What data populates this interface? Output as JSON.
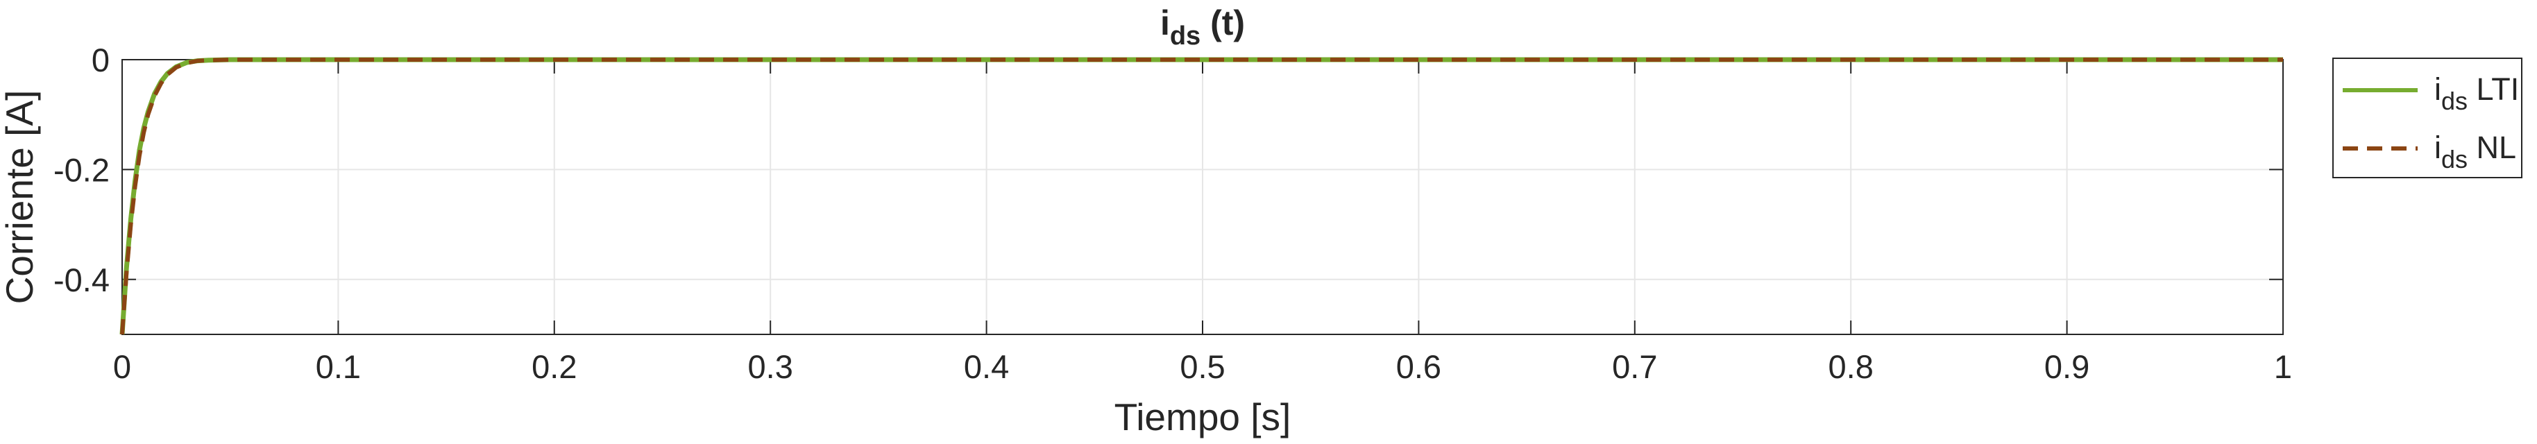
{
  "chart_data": {
    "type": "line",
    "title": "i",
    "title_sub": "ds",
    "title_suffix": " (t)",
    "xlabel": "Tiempo [s]",
    "ylabel": "Corriente [A]",
    "xlim": [
      0,
      1
    ],
    "ylim": [
      -0.5,
      0
    ],
    "xticks": [
      0,
      0.1,
      0.2,
      0.3,
      0.4,
      0.5,
      0.6,
      0.7,
      0.8,
      0.9,
      1
    ],
    "xtick_labels": [
      "0",
      "0.1",
      "0.2",
      "0.3",
      "0.4",
      "0.5",
      "0.6",
      "0.7",
      "0.8",
      "0.9",
      "1"
    ],
    "yticks": [
      0,
      -0.2,
      -0.4
    ],
    "ytick_labels": [
      "0",
      "-0.2",
      "-0.4"
    ],
    "grid": true,
    "legend_position": "outside-right",
    "series": [
      {
        "name": "i",
        "name_sub": "ds",
        "name_suffix": " LTI",
        "color": "#77ac30",
        "style": "solid",
        "x": [
          0,
          0.002,
          0.004,
          0.006,
          0.008,
          0.01,
          0.012,
          0.015,
          0.018,
          0.021,
          0.025,
          0.03,
          0.035,
          0.04,
          0.05,
          0.1,
          0.2,
          0.3,
          0.4,
          0.5,
          0.6,
          0.7,
          0.8,
          0.9,
          1
        ],
        "y": [
          -0.5,
          -0.38,
          -0.29,
          -0.22,
          -0.165,
          -0.125,
          -0.095,
          -0.062,
          -0.04,
          -0.025,
          -0.013,
          -0.005,
          -0.002,
          -0.001,
          0,
          0,
          0,
          0,
          0,
          0,
          0,
          0,
          0,
          0,
          0
        ]
      },
      {
        "name": "i",
        "name_sub": "ds",
        "name_suffix": " NL",
        "color": "#8b4513",
        "style": "dashed",
        "x": [
          0,
          0.002,
          0.004,
          0.006,
          0.008,
          0.01,
          0.012,
          0.015,
          0.018,
          0.021,
          0.025,
          0.03,
          0.035,
          0.04,
          0.05,
          0.1,
          0.2,
          0.3,
          0.4,
          0.5,
          0.6,
          0.7,
          0.8,
          0.9,
          1
        ],
        "y": [
          -0.5,
          -0.39,
          -0.3,
          -0.23,
          -0.175,
          -0.133,
          -0.1,
          -0.066,
          -0.043,
          -0.027,
          -0.014,
          -0.006,
          -0.002,
          -0.001,
          0,
          0,
          0,
          0,
          0,
          0,
          0,
          0,
          0,
          0,
          0
        ]
      }
    ]
  }
}
